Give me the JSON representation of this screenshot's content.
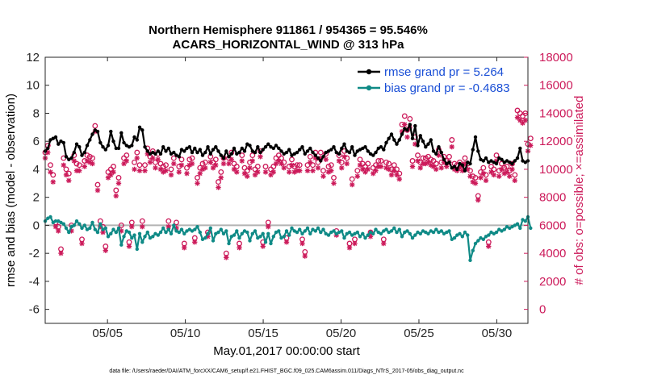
{
  "chart_data": {
    "type": "line",
    "title": "Northern Hemisphere 911861 / 954365 = 95.546%",
    "subtitle": "ACARS_HORIZONTAL_WIND @ 313 hPa",
    "xlabel": "May.01,2017 00:00:00 start",
    "ylabel_left": "rmse and bias (model - observation)",
    "ylabel_right": "# of obs: o=possible; ×=assimilated",
    "footnote": "data file: /Users/raeder/DAI/ATM_forcXX/CAM6_setup/f.e21.FHIST_BGC.f09_025.CAM6assim.011/Diags_NTrS_2017-05/obs_diag_output.nc",
    "xlim": [
      1,
      32
    ],
    "ylim_left": [
      -7,
      12
    ],
    "ylim_right": [
      -1000,
      18000
    ],
    "x_ticks": [
      5,
      10,
      15,
      20,
      25,
      30
    ],
    "x_tick_labels": [
      "05/05",
      "05/10",
      "05/15",
      "05/20",
      "05/25",
      "05/30"
    ],
    "y_left_ticks": [
      -6,
      -4,
      -2,
      0,
      2,
      4,
      6,
      8,
      10,
      12
    ],
    "y_right_ticks": [
      0,
      2000,
      4000,
      6000,
      8000,
      10000,
      12000,
      14000,
      16000,
      18000
    ],
    "legend_position": "top-right",
    "grid": false,
    "colors": {
      "rmse": "#000000",
      "bias": "#0f8a86",
      "counts": "#cc1a5a",
      "legend_text": "#1a4fd6",
      "zero_line": "#b3b3b3",
      "right_axis": "#cc1a5a"
    },
    "series": [
      {
        "name": "rmse grand pr = 5.264",
        "key": "rmse",
        "values": [
          5.3,
          5.5,
          6.1,
          6.2,
          6.3,
          5.8,
          6.0,
          5.9,
          4.9,
          4.7,
          4.8,
          5.2,
          5.8,
          5.6,
          5.0,
          5.2,
          5.7,
          6.1,
          6.5,
          6.8,
          6.7,
          5.9,
          5.6,
          5.4,
          5.7,
          6.7,
          6.0,
          5.5,
          5.5,
          6.6,
          5.9,
          5.7,
          5.6,
          5.7,
          6.3,
          6.1,
          7.0,
          6.8,
          5.6,
          5.3,
          5.1,
          5.2,
          5.1,
          5.3,
          5.1,
          5.6,
          5.3,
          5.5,
          5.1,
          5.2,
          5.0,
          4.9,
          5.4,
          5.3,
          5.5,
          5.6,
          5.2,
          5.5,
          5.2,
          5.4,
          5.0,
          5.2,
          5.6,
          5.1,
          5.4,
          5.6,
          5.3,
          5.0,
          4.8,
          5.3,
          4.9,
          5.1,
          5.5,
          5.1,
          5.2,
          5.5,
          5.3,
          5.8,
          5.7,
          5.3,
          5.2,
          5.6,
          5.2,
          5.4,
          5.6,
          5.8,
          5.6,
          5.5,
          5.7,
          5.5,
          5.3,
          5.1,
          5.2,
          5.4,
          5.0,
          5.1,
          5.2,
          5.4,
          5.6,
          5.1,
          5.3,
          5.5,
          5.2,
          5.0,
          4.8,
          4.6,
          4.9,
          5.2,
          5.3,
          5.4,
          5.6,
          5.2,
          5.1,
          5.5,
          5.8,
          5.3,
          5.2,
          5.6,
          5.0,
          5.3,
          5.4,
          5.5,
          5.6,
          5.3,
          5.1,
          5.0,
          5.2,
          5.5,
          5.6,
          5.4,
          5.9,
          6.2,
          6.5,
          6.1,
          5.8,
          6.1,
          6.5,
          6.9,
          6.8,
          7.2,
          6.2,
          7.1,
          5.7,
          6.4,
          6.0,
          5.6,
          5.8,
          6.1,
          5.3,
          5.1,
          5.6,
          5.2,
          4.7,
          4.4,
          4.5,
          4.1,
          4.2,
          4.0,
          4.4,
          4.3,
          3.9,
          4.5,
          4.4,
          5.4,
          6.3,
          5.3,
          4.7,
          4.6,
          4.8,
          4.5,
          4.6,
          4.5,
          4.4,
          4.8,
          4.7,
          4.5,
          4.6,
          4.5,
          4.4,
          4.6,
          4.8,
          5.5,
          4.6,
          4.5,
          4.6
        ]
      },
      {
        "name": "bias grand pr = -0.4683",
        "key": "bias",
        "values": [
          0.3,
          0.5,
          0.6,
          0.2,
          0.3,
          0.3,
          0.2,
          0.1,
          -0.2,
          -0.5,
          -0.1,
          0.0,
          0.3,
          0.1,
          -0.2,
          0.0,
          -0.3,
          -0.2,
          0.2,
          -0.3,
          -0.5,
          0.1,
          -0.3,
          -0.2,
          -0.8,
          -0.6,
          -0.3,
          -0.5,
          -0.2,
          -1.4,
          -0.8,
          -0.4,
          -0.5,
          -0.9,
          -0.7,
          -1.7,
          -0.6,
          -1.2,
          -0.8,
          -0.5,
          -0.9,
          -0.8,
          -0.6,
          -0.7,
          -0.5,
          -0.2,
          -0.5,
          -0.3,
          -0.6,
          0.0,
          -0.4,
          -0.5,
          -0.3,
          -0.6,
          -0.4,
          -0.3,
          -0.4,
          -0.3,
          -0.1,
          -0.5,
          -1.0,
          -0.9,
          -0.6,
          -0.2,
          -1.1,
          -0.6,
          -0.5,
          -0.3,
          -0.6,
          -0.4,
          -1.3,
          -0.8,
          -0.7,
          -0.4,
          -0.9,
          -0.6,
          -0.4,
          -0.5,
          -1.1,
          -0.6,
          -0.4,
          -0.9,
          -0.8,
          -0.6,
          -1.2,
          -0.6,
          -1.3,
          -0.8,
          -0.5,
          -0.4,
          -0.9,
          -0.8,
          -0.4,
          -0.7,
          -0.2,
          -0.4,
          -0.5,
          -0.3,
          -0.6,
          -0.4,
          -0.2,
          -0.6,
          -0.3,
          -0.4,
          -0.2,
          -0.5,
          -0.3,
          -0.6,
          -0.7,
          -0.5,
          -0.4,
          -0.6,
          -0.5,
          -0.4,
          -0.9,
          -0.6,
          -0.5,
          -0.7,
          -0.6,
          -0.5,
          -0.8,
          -0.6,
          -0.9,
          -0.7,
          -0.5,
          -0.6,
          -0.3,
          -0.5,
          -0.6,
          -0.4,
          -0.3,
          -0.5,
          -0.4,
          -0.2,
          -0.5,
          -0.3,
          -0.8,
          -0.5,
          -0.4,
          -0.6,
          -0.9,
          -0.7,
          -0.5,
          -0.6,
          -0.4,
          -0.5,
          -0.6,
          -0.4,
          -0.5,
          -0.3,
          -0.5,
          -0.4,
          -0.6,
          -0.5,
          -0.4,
          -1.0,
          -0.9,
          -0.7,
          -0.6,
          -0.8,
          -0.5,
          -0.7,
          -2.5,
          -1.8,
          -1.3,
          -1.1,
          -0.9,
          -1.0,
          -0.8,
          -0.7,
          -0.5,
          -0.6,
          -0.5,
          -0.3,
          -0.4,
          -0.3,
          -0.1,
          -0.2,
          -0.1,
          0.0,
          0.1,
          -0.2,
          0.4,
          0.3,
          0.6,
          -0.2
        ]
      },
      {
        "name": "possible",
        "key": "possible",
        "values": [
          11200,
          11700,
          10300,
          9600,
          6200,
          5900,
          4300,
          10800,
          10000,
          9700,
          6000,
          11000,
          10400,
          10300,
          5000,
          10600,
          11000,
          10900,
          10800,
          13100,
          8900,
          6300,
          5900,
          4500,
          9800,
          10000,
          10200,
          8500,
          9400,
          6000,
          10800,
          11000,
          4800,
          6200,
          10500,
          11200,
          10300,
          6300,
          10300,
          11500,
          10900,
          11300,
          10500,
          11100,
          10400,
          10200,
          10300,
          6300,
          10000,
          10800,
          6200,
          10200,
          10700,
          4700,
          10100,
          10700,
          10800,
          5100,
          9400,
          10100,
          10400,
          10500,
          5500,
          10900,
          10500,
          10700,
          9100,
          9800,
          10800,
          4000,
          10800,
          11200,
          10400,
          10200,
          4700,
          11000,
          10100,
          9900,
          10500,
          11000,
          10000,
          10200,
          11300,
          4800,
          10200,
          6200,
          10000,
          10200,
          10800,
          11000,
          10800,
          10500,
          5100,
          10200,
          10700,
          10200,
          10300,
          10300,
          5000,
          4100,
          10300,
          10900,
          10300,
          11200,
          10500,
          11200,
          9900,
          11100,
          10200,
          10300,
          9400,
          5600,
          11000,
          10500,
          11300,
          10800,
          4700,
          9300,
          5000,
          9900,
          10700,
          10400,
          10200,
          10400,
          5500,
          10100,
          10300,
          10600,
          10600,
          5000,
          10500,
          10400,
          10000,
          10300,
          10000,
          9700,
          13200,
          13800,
          12800,
          13600,
          10600,
          12300,
          11000,
          10500,
          10800,
          10800,
          10900,
          10700,
          10600,
          10400,
          11400,
          10500,
          10900,
          10600,
          10900,
          12100,
          10400,
          10300,
          10500,
          10300,
          10800,
          10400,
          9900,
          9500,
          9400,
          8100,
          9800,
          10100,
          9600,
          4800,
          10200,
          10000,
          11000,
          9900,
          10400,
          10100,
          10200,
          9900,
          10400,
          9600,
          14200,
          14000,
          13800,
          14000,
          11800,
          12200
        ]
      },
      {
        "name": "assimilated",
        "key": "assimilated",
        "values": [
          10800,
          11200,
          9800,
          9100,
          5900,
          5600,
          4000,
          10300,
          9600,
          9200,
          5600,
          10600,
          9900,
          9900,
          4700,
          10200,
          10600,
          10500,
          10400,
          12700,
          8500,
          5900,
          5500,
          4200,
          9400,
          9600,
          9800,
          8100,
          9000,
          5600,
          10400,
          10600,
          4500,
          5900,
          10000,
          10800,
          9900,
          5900,
          9900,
          11100,
          10500,
          10800,
          10100,
          10700,
          10000,
          9800,
          9900,
          5900,
          9600,
          10400,
          5800,
          9800,
          10300,
          4400,
          9700,
          10300,
          10400,
          4800,
          9000,
          9700,
          10000,
          10100,
          5200,
          10500,
          10100,
          10300,
          8700,
          9400,
          10400,
          3700,
          10400,
          10700,
          10000,
          9800,
          4400,
          10600,
          9700,
          9500,
          10100,
          10600,
          9600,
          9800,
          10900,
          4500,
          9800,
          5900,
          9600,
          9800,
          10400,
          10600,
          10400,
          10100,
          4800,
          9800,
          10300,
          9800,
          9900,
          9900,
          4700,
          3800,
          9900,
          10500,
          9900,
          10800,
          10100,
          10800,
          9500,
          10700,
          9800,
          9900,
          9000,
          5300,
          10600,
          10100,
          10900,
          10400,
          4400,
          8900,
          4700,
          9500,
          10300,
          10000,
          9800,
          10000,
          5200,
          9700,
          9900,
          10200,
          10200,
          4700,
          10100,
          10000,
          9600,
          9900,
          9600,
          9300,
          12700,
          13200,
          12300,
          13000,
          10200,
          11800,
          10600,
          10100,
          10400,
          10400,
          10500,
          10300,
          10200,
          10000,
          11000,
          10100,
          10500,
          10200,
          10500,
          11600,
          10000,
          9900,
          10100,
          9900,
          10400,
          10000,
          9500,
          9100,
          9000,
          7800,
          9400,
          9700,
          9200,
          4500,
          9800,
          9600,
          10600,
          9500,
          10000,
          9700,
          9800,
          9500,
          10000,
          9200,
          13700,
          13500,
          13300,
          13500,
          11300,
          11700
        ]
      }
    ]
  }
}
